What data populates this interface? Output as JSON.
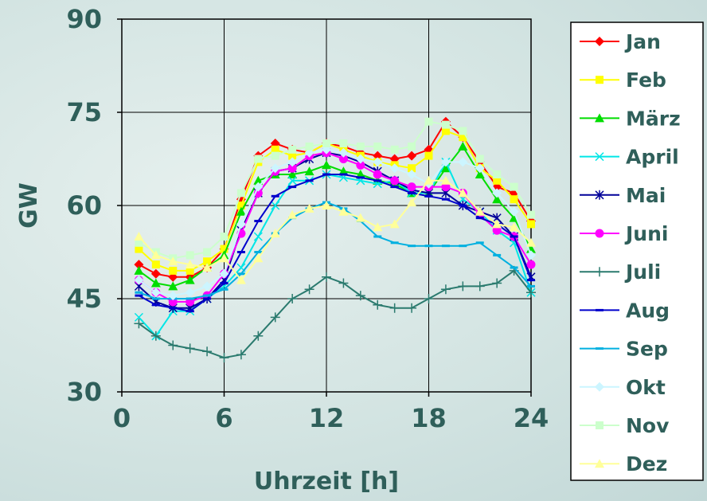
{
  "chart_data": {
    "type": "line",
    "xlabel": "Uhrzeit [h]",
    "ylabel": "GW",
    "xlim": [
      0,
      24
    ],
    "ylim": [
      30,
      90
    ],
    "xticks": [
      "0",
      "6",
      "12",
      "18",
      "24"
    ],
    "yticks": [
      "30",
      "45",
      "60",
      "75",
      "90"
    ],
    "grid": true,
    "legend_position": "right",
    "x": [
      1,
      2,
      3,
      4,
      5,
      6,
      7,
      8,
      9,
      10,
      11,
      12,
      13,
      14,
      15,
      16,
      17,
      18,
      19,
      20,
      21,
      22,
      23,
      24
    ],
    "series": [
      {
        "name": "Jan",
        "color": "#ff0000",
        "marker": "diamond",
        "values": [
          50.5,
          49,
          48.5,
          48.5,
          50,
          53,
          61,
          68,
          70,
          69,
          68.5,
          70,
          69.5,
          68.5,
          68,
          67.5,
          68,
          69,
          73.5,
          71,
          67,
          63,
          62,
          57.5
        ]
      },
      {
        "name": "Feb",
        "color": "#ffff00",
        "marker": "square",
        "values": [
          53,
          50.5,
          49.5,
          49.5,
          51,
          53,
          60,
          67,
          69,
          68,
          68.5,
          70,
          69,
          68,
          67,
          66.5,
          66,
          68,
          72,
          71,
          66,
          64,
          61,
          57
        ]
      },
      {
        "name": "März",
        "color": "#00dd00",
        "marker": "triangle",
        "values": [
          49.5,
          47.5,
          47,
          48,
          50,
          52,
          59,
          64,
          65,
          65,
          65.5,
          66.5,
          65.5,
          65,
          64,
          63.5,
          62,
          62,
          66,
          69.5,
          65,
          61,
          58,
          53
        ]
      },
      {
        "name": "April",
        "color": "#00e6e6",
        "marker": "x",
        "values": [
          42,
          39,
          43,
          43,
          45,
          47,
          50,
          55,
          60,
          64,
          64,
          65,
          64.5,
          64,
          63.5,
          64,
          62,
          62,
          67,
          61,
          59,
          56,
          54,
          46
        ]
      },
      {
        "name": "Mai",
        "color": "#000099",
        "marker": "star",
        "values": [
          47,
          44.5,
          43.5,
          43.5,
          45,
          48,
          56,
          62,
          65.5,
          66,
          67.5,
          68.5,
          68,
          67,
          65.5,
          64,
          62.5,
          62,
          62,
          60,
          59,
          58,
          55,
          48.5
        ]
      },
      {
        "name": "Juni",
        "color": "#ff00ff",
        "marker": "circle",
        "values": [
          48,
          46,
          44.5,
          44.5,
          45.5,
          49,
          55.5,
          62,
          65.5,
          66,
          68,
          68.5,
          67.5,
          66.5,
          65,
          64,
          63,
          63,
          63,
          62,
          58.5,
          56,
          55,
          50.5
        ]
      },
      {
        "name": "Juli",
        "color": "#2a7a6e",
        "marker": "plus",
        "values": [
          41,
          39,
          37.5,
          37,
          36.5,
          35.5,
          36,
          39,
          42,
          45,
          46.5,
          48.5,
          47.5,
          45.5,
          44,
          43.5,
          43.5,
          45,
          46.5,
          47,
          47,
          47.5,
          49.5,
          46
        ]
      },
      {
        "name": "Aug",
        "color": "#0000cc",
        "marker": "dash",
        "values": [
          45.5,
          44,
          43.5,
          43,
          45,
          47.5,
          52.5,
          57.5,
          61.5,
          63,
          64,
          65,
          65,
          64.5,
          64,
          63,
          62,
          61.5,
          61,
          60,
          58,
          57,
          55,
          48
        ]
      },
      {
        "name": "Sep",
        "color": "#00b0e0",
        "marker": "dash",
        "values": [
          46,
          45,
          45,
          45,
          45.5,
          46.5,
          49,
          52.5,
          55.5,
          58,
          59.5,
          60.5,
          59.5,
          57.5,
          55,
          54,
          53.5,
          53.5,
          53.5,
          53.5,
          54,
          52,
          50,
          47
        ]
      },
      {
        "name": "Okt",
        "color": "#ccf5ff",
        "marker": "diamond",
        "values": [
          48,
          46,
          45.5,
          46,
          47,
          49,
          57,
          63,
          66,
          67,
          68.5,
          69,
          68.5,
          67.5,
          67,
          66,
          65,
          63.5,
          67,
          67,
          66,
          62,
          59,
          52
        ]
      },
      {
        "name": "Nov",
        "color": "#ccffcc",
        "marker": "square",
        "values": [
          54,
          52.5,
          51.5,
          52,
          52.5,
          55,
          62,
          67.5,
          68,
          69,
          69.5,
          70,
          70,
          69.5,
          69.5,
          69,
          69.5,
          73.5,
          73,
          72,
          67.5,
          65,
          63,
          58.5
        ]
      },
      {
        "name": "Dez",
        "color": "#ffff99",
        "marker": "triangle",
        "values": [
          55,
          52,
          51,
          50.5,
          50,
          51.5,
          48,
          51.5,
          55.5,
          58.5,
          59.5,
          60,
          59,
          58,
          56.5,
          57,
          60.5,
          64,
          64,
          62,
          59,
          57,
          56.5,
          54
        ]
      }
    ]
  }
}
